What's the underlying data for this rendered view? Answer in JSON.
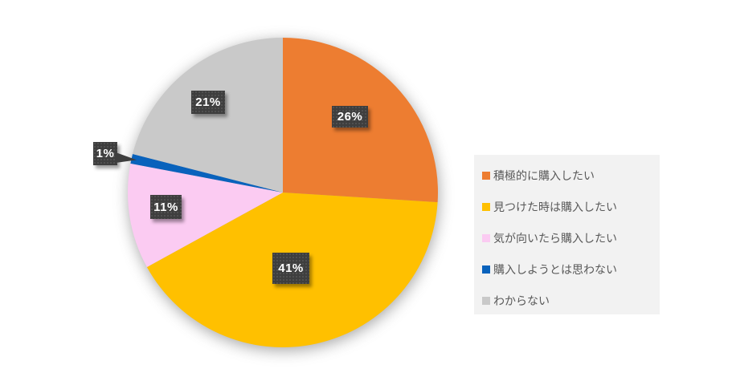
{
  "chart_data": {
    "type": "pie",
    "title": "",
    "categories": [
      "積極的に購入したい",
      "見つけた時は購入したい",
      "気が向いたら購入したい",
      "購入しようとは思わない",
      "わからない"
    ],
    "values": [
      26,
      41,
      11,
      1,
      21
    ],
    "data_labels": [
      "26%",
      "41%",
      "11%",
      "1%",
      "21%"
    ],
    "colors": [
      "#ED7D31",
      "#FFC000",
      "#FBCBF2",
      "#0962BC",
      "#C9C9C9"
    ],
    "start_angle_deg": 0,
    "direction": "clockwise",
    "legend_position": "right",
    "callout": {
      "slice": "購入しようとは思わない",
      "label": "1%"
    }
  },
  "style_colors": {
    "background": "#FFFFFF",
    "label_box": "#3E3E3E",
    "label_text": "#FFFFFF",
    "legend_background": "#F2F2F2",
    "legend_text": "#595959"
  }
}
